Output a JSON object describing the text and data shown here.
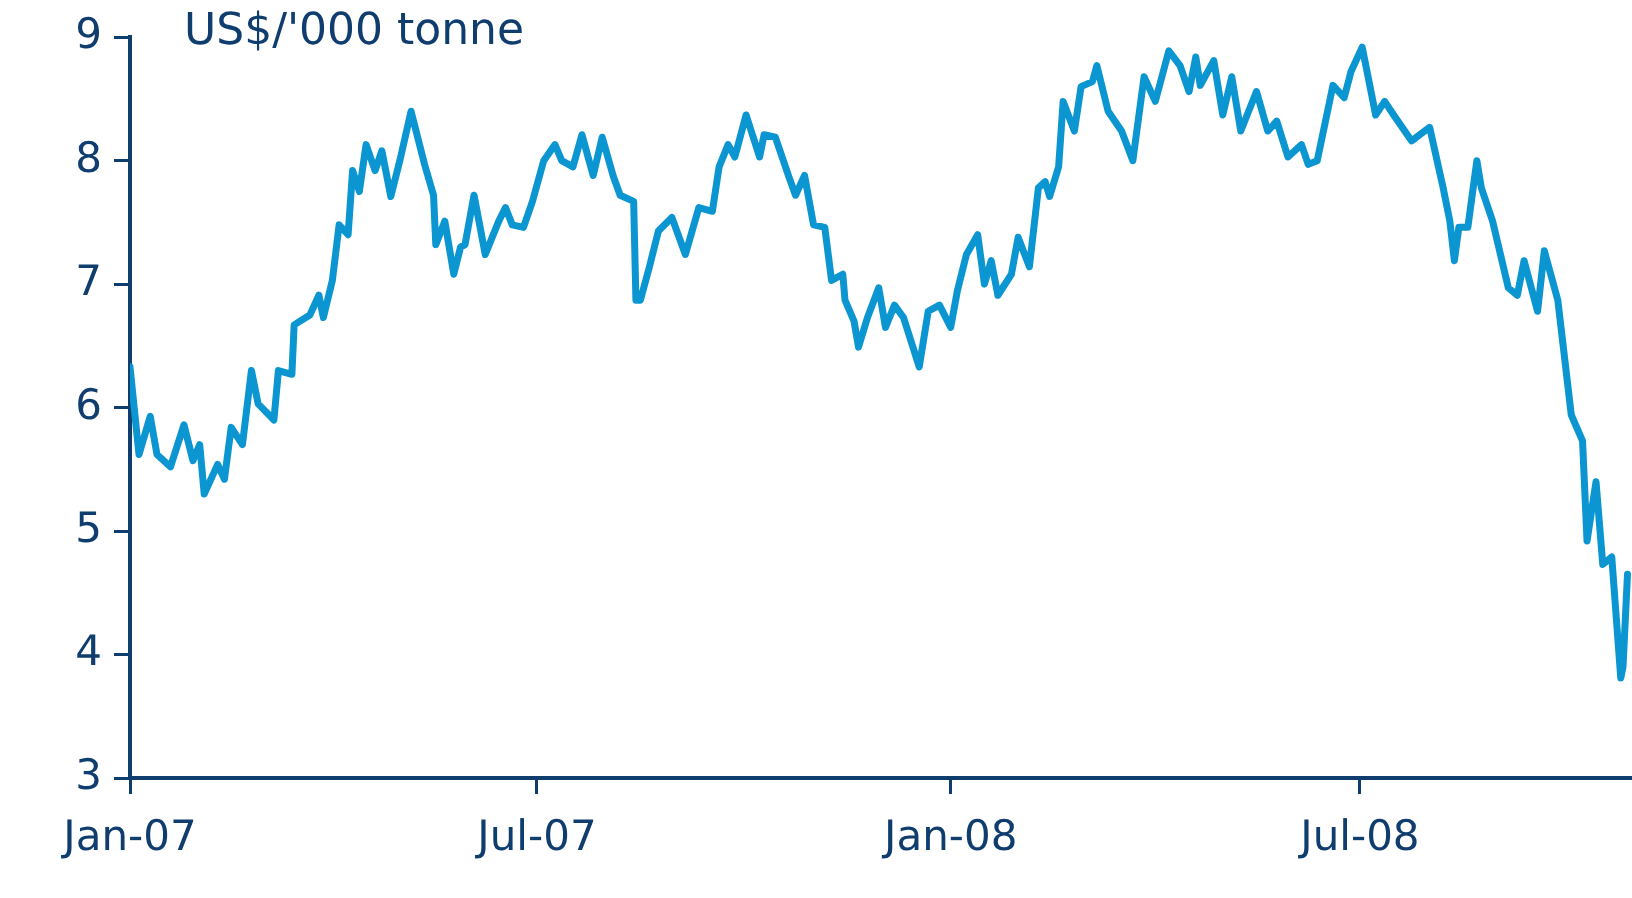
{
  "chart_data": {
    "type": "line",
    "ylabel": "US$/'000 tonne",
    "x": [
      "2007-01-01",
      "2007-01-05",
      "2007-01-10",
      "2007-01-13",
      "2007-01-19",
      "2007-01-25",
      "2007-01-29",
      "2007-02-01",
      "2007-02-03",
      "2007-02-09",
      "2007-02-12",
      "2007-02-15",
      "2007-02-20",
      "2007-02-24",
      "2007-02-27",
      "2007-03-06",
      "2007-03-08",
      "2007-03-14",
      "2007-03-15",
      "2007-03-22",
      "2007-03-26",
      "2007-03-28",
      "2007-04-01",
      "2007-04-04",
      "2007-04-08",
      "2007-04-10",
      "2007-04-13",
      "2007-04-16",
      "2007-04-20",
      "2007-04-23",
      "2007-04-27",
      "2007-05-01",
      "2007-05-06",
      "2007-05-12",
      "2007-05-16",
      "2007-05-17",
      "2007-05-21",
      "2007-05-25",
      "2007-05-28",
      "2007-05-30",
      "2007-06-03",
      "2007-06-08",
      "2007-06-14",
      "2007-06-17",
      "2007-06-20",
      "2007-06-25",
      "2007-06-29",
      "2007-07-04",
      "2007-07-09",
      "2007-07-12",
      "2007-07-17",
      "2007-07-21",
      "2007-07-26",
      "2007-07-30",
      "2007-08-04",
      "2007-08-07",
      "2007-08-13",
      "2007-08-14",
      "2007-08-16",
      "2007-08-20",
      "2007-08-24",
      "2007-08-30",
      "2007-09-05",
      "2007-09-11",
      "2007-09-17",
      "2007-09-20",
      "2007-09-24",
      "2007-09-27",
      "2007-10-02",
      "2007-10-08",
      "2007-10-10",
      "2007-10-15",
      "2007-10-21",
      "2007-10-24",
      "2007-10-28",
      "2007-11-01",
      "2007-11-06",
      "2007-11-09",
      "2007-11-14",
      "2007-11-15",
      "2007-11-19",
      "2007-11-21",
      "2007-11-25",
      "2007-11-30",
      "2007-12-03",
      "2007-12-07",
      "2007-12-11",
      "2007-12-18",
      "2007-12-22",
      "2007-12-27",
      "2008-01-01",
      "2008-01-04",
      "2008-01-08",
      "2008-01-13",
      "2008-01-16",
      "2008-01-19",
      "2008-01-22",
      "2008-01-28",
      "2008-01-31",
      "2008-02-05",
      "2008-02-09",
      "2008-02-12",
      "2008-02-14",
      "2008-02-18",
      "2008-02-20",
      "2008-02-25",
      "2008-02-28",
      "2008-03-04",
      "2008-03-06",
      "2008-03-11",
      "2008-03-17",
      "2008-03-22",
      "2008-03-27",
      "2008-04-01",
      "2008-04-07",
      "2008-04-12",
      "2008-04-16",
      "2008-04-19",
      "2008-04-21",
      "2008-04-27",
      "2008-05-01",
      "2008-05-05",
      "2008-05-09",
      "2008-05-16",
      "2008-05-21",
      "2008-05-25",
      "2008-05-30",
      "2008-06-05",
      "2008-06-08",
      "2008-06-12",
      "2008-06-19",
      "2008-06-24",
      "2008-06-27",
      "2008-07-02",
      "2008-07-08",
      "2008-07-12",
      "2008-07-16",
      "2008-07-24",
      "2008-08-01",
      "2008-08-07",
      "2008-08-10",
      "2008-08-12",
      "2008-08-14",
      "2008-08-18",
      "2008-08-22",
      "2008-08-24",
      "2008-08-29",
      "2008-09-05",
      "2008-09-09",
      "2008-09-12",
      "2008-09-18",
      "2008-09-21",
      "2008-09-27",
      "2008-10-03",
      "2008-10-08",
      "2008-10-10",
      "2008-10-14",
      "2008-10-17",
      "2008-10-21",
      "2008-10-25",
      "2008-10-26",
      "2008-10-28"
    ],
    "series": [
      {
        "color": "#0b96d2",
        "values": [
          6.33,
          5.62,
          5.93,
          5.62,
          5.52,
          5.86,
          5.57,
          5.7,
          5.3,
          5.54,
          5.42,
          5.84,
          5.7,
          6.3,
          6.03,
          5.9,
          6.3,
          6.27,
          6.67,
          6.75,
          6.91,
          6.73,
          7.03,
          7.48,
          7.4,
          7.92,
          7.75,
          8.13,
          7.92,
          8.08,
          7.71,
          8.0,
          8.4,
          7.97,
          7.72,
          7.32,
          7.51,
          7.08,
          7.3,
          7.32,
          7.72,
          7.24,
          7.51,
          7.62,
          7.48,
          7.46,
          7.67,
          8.0,
          8.13,
          8.0,
          7.95,
          8.21,
          7.88,
          8.19,
          7.87,
          7.72,
          7.67,
          6.87,
          6.87,
          7.14,
          7.43,
          7.54,
          7.24,
          7.62,
          7.59,
          7.95,
          8.13,
          8.03,
          8.37,
          8.03,
          8.21,
          8.19,
          7.87,
          7.72,
          7.88,
          7.48,
          7.46,
          7.03,
          7.08,
          6.87,
          6.7,
          6.49,
          6.73,
          6.97,
          6.65,
          6.83,
          6.73,
          6.33,
          6.78,
          6.83,
          6.65,
          6.95,
          7.24,
          7.4,
          7.0,
          7.19,
          6.91,
          7.08,
          7.38,
          7.14,
          7.78,
          7.83,
          7.71,
          7.95,
          8.48,
          8.24,
          8.6,
          8.64,
          8.77,
          8.4,
          8.24,
          8.0,
          8.68,
          8.48,
          8.89,
          8.77,
          8.56,
          8.84,
          8.61,
          8.81,
          8.37,
          8.68,
          8.24,
          8.56,
          8.24,
          8.32,
          8.03,
          8.13,
          7.97,
          8.0,
          8.61,
          8.51,
          8.72,
          8.92,
          8.37,
          8.48,
          8.37,
          8.16,
          8.27,
          7.78,
          7.51,
          7.19,
          7.46,
          7.46,
          8.0,
          7.78,
          7.51,
          6.97,
          6.91,
          7.19,
          6.78,
          7.27,
          6.87,
          5.94,
          5.73,
          4.92,
          5.4,
          4.73,
          4.79,
          3.81,
          3.9,
          4.65
        ]
      }
    ],
    "xlim": [
      "2007-01-01",
      "2008-10-30"
    ],
    "xticks": [
      {
        "value": "2007-01-01",
        "label": "Jan-07"
      },
      {
        "value": "2007-07-01",
        "label": "Jul-07"
      },
      {
        "value": "2008-01-01",
        "label": "Jan-08"
      },
      {
        "value": "2008-07-01",
        "label": "Jul-08"
      }
    ],
    "ylim": [
      3,
      9
    ],
    "yticks": [
      3,
      4,
      5,
      6,
      7,
      8,
      9
    ],
    "grid": false,
    "legend": false,
    "marker": "none",
    "line_style": "solid"
  }
}
